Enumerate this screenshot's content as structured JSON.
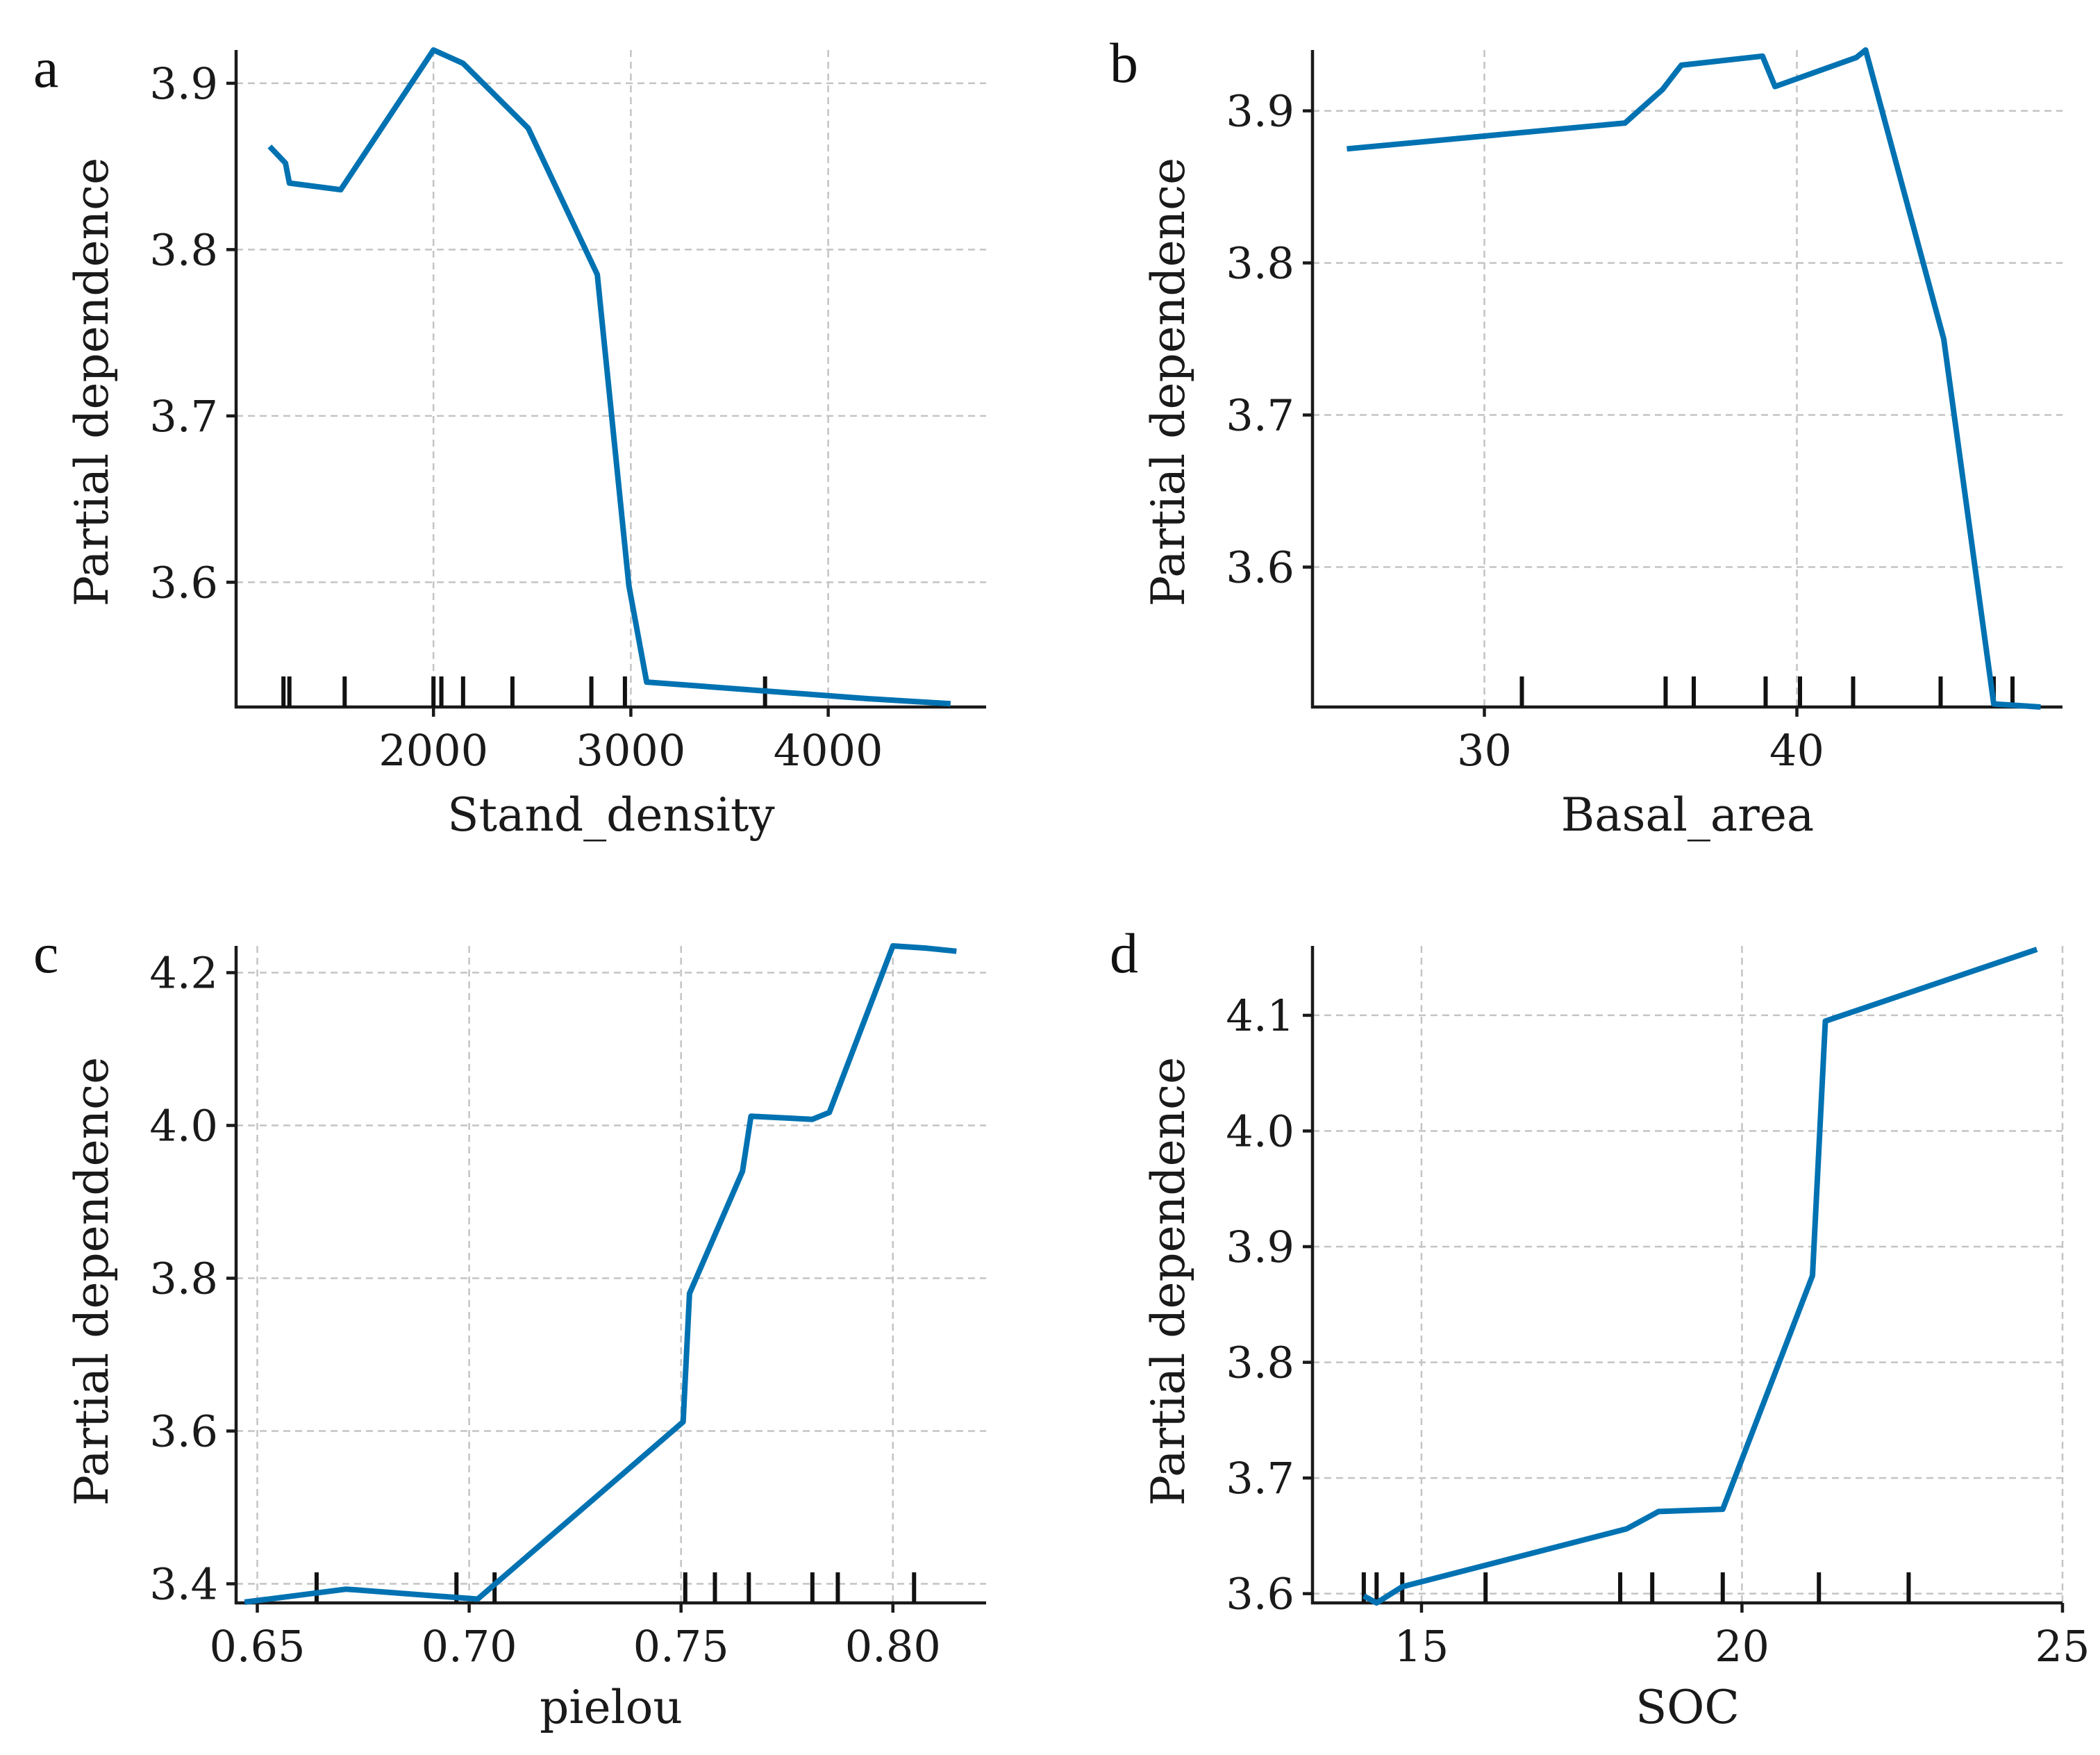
{
  "chart_data": [
    {
      "panel": "a",
      "type": "line",
      "xlabel": "Stand_density",
      "ylabel": "Partial dependence",
      "xlim": [
        1000,
        4800
      ],
      "ylim": [
        3.525,
        3.92
      ],
      "xticks": [
        2000,
        3000,
        4000
      ],
      "xtick_labels": [
        "2000",
        "3000",
        "4000"
      ],
      "yticks": [
        3.6,
        3.7,
        3.8,
        3.9
      ],
      "ytick_labels": [
        "3.6",
        "3.7",
        "3.8",
        "3.9"
      ],
      "grid": true,
      "series": [
        {
          "name": "Partial dependence",
          "x": [
            1170,
            1250,
            1270,
            1530,
            2000,
            2150,
            2480,
            2830,
            2990,
            3080,
            4200,
            4620
          ],
          "y": [
            3.862,
            3.852,
            3.84,
            3.836,
            3.92,
            3.912,
            3.873,
            3.785,
            3.598,
            3.54,
            3.53,
            3.527
          ]
        }
      ],
      "rug": [
        1240,
        1270,
        1550,
        2000,
        2040,
        2150,
        2400,
        2800,
        2970,
        3680
      ]
    },
    {
      "panel": "b",
      "type": "line",
      "xlabel": "Basal_area",
      "ylabel": "Partial dependence",
      "xlim": [
        24.5,
        48.5
      ],
      "ylim": [
        3.508,
        3.94
      ],
      "xticks": [
        30,
        40
      ],
      "xtick_labels": [
        "30",
        "40"
      ],
      "yticks": [
        3.6,
        3.7,
        3.8,
        3.9
      ],
      "ytick_labels": [
        "3.6",
        "3.7",
        "3.8",
        "3.9"
      ],
      "grid": true,
      "series": [
        {
          "name": "Partial dependence",
          "x": [
            25.6,
            34.5,
            35.7,
            36.3,
            38.9,
            39.3,
            41.9,
            42.2,
            44.7,
            46.3,
            47.8
          ],
          "y": [
            3.875,
            3.892,
            3.914,
            3.93,
            3.936,
            3.916,
            3.935,
            3.94,
            3.75,
            3.51,
            3.508
          ]
        }
      ],
      "rug": [
        31.2,
        35.8,
        36.7,
        39.0,
        40.1,
        41.8,
        44.6,
        46.3,
        46.9
      ]
    },
    {
      "panel": "c",
      "type": "line",
      "xlabel": "pielou",
      "ylabel": "Partial dependence",
      "xlim": [
        0.645,
        0.822
      ],
      "ylim": [
        3.375,
        4.235
      ],
      "xticks": [
        0.65,
        0.7,
        0.75,
        0.8
      ],
      "xtick_labels": [
        "0.65",
        "0.70",
        "0.75",
        "0.80"
      ],
      "yticks": [
        3.4,
        3.6,
        3.8,
        4.0,
        4.2
      ],
      "ytick_labels": [
        "3.4",
        "3.6",
        "3.8",
        "4.0",
        "4.2"
      ],
      "grid": true,
      "series": [
        {
          "name": "Partial dependence",
          "x": [
            0.647,
            0.671,
            0.702,
            0.7505,
            0.752,
            0.7645,
            0.7665,
            0.781,
            0.785,
            0.8,
            0.808,
            0.815
          ],
          "y": [
            3.376,
            3.393,
            3.38,
            3.612,
            3.78,
            3.94,
            4.012,
            4.008,
            4.017,
            4.235,
            4.232,
            4.228
          ]
        }
      ],
      "rug": [
        0.664,
        0.697,
        0.706,
        0.751,
        0.758,
        0.766,
        0.781,
        0.787,
        0.805
      ]
    },
    {
      "panel": "d",
      "type": "line",
      "xlabel": "SOC",
      "ylabel": "Partial dependence",
      "xlim": [
        13.3,
        25.0
      ],
      "ylim": [
        3.592,
        4.16
      ],
      "xticks": [
        15,
        20,
        25
      ],
      "xtick_labels": [
        "15",
        "20",
        "25"
      ],
      "yticks": [
        3.6,
        3.7,
        3.8,
        3.9,
        4.0,
        4.1
      ],
      "ytick_labels": [
        "3.6",
        "3.7",
        "3.8",
        "3.9",
        "4.0",
        "4.1"
      ],
      "grid": true,
      "series": [
        {
          "name": "Partial dependence",
          "x": [
            14.1,
            14.3,
            14.7,
            18.2,
            18.7,
            19.7,
            21.1,
            21.3,
            24.6
          ],
          "y": [
            3.598,
            3.592,
            3.606,
            3.656,
            3.671,
            3.673,
            3.875,
            4.095,
            4.157
          ]
        }
      ],
      "rug": [
        14.1,
        14.3,
        14.7,
        16.0,
        18.1,
        18.6,
        19.7,
        21.2,
        22.6
      ]
    }
  ]
}
